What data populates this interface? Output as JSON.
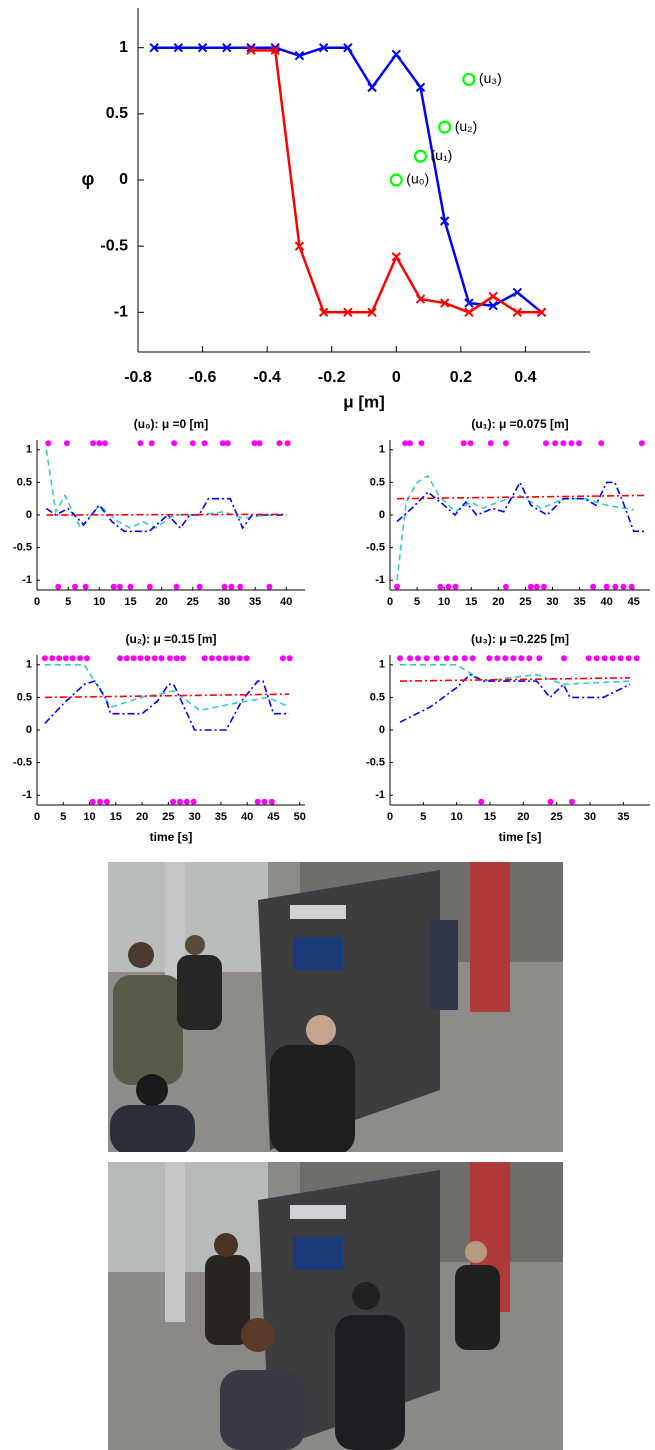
{
  "chart_data": [
    {
      "type": "line",
      "xlabel": "μ [m]",
      "ylabel": "φ",
      "x": [
        -0.75,
        -0.675,
        -0.6,
        -0.525,
        -0.45,
        -0.375,
        -0.3,
        -0.225,
        -0.15,
        -0.075,
        0,
        0.075,
        0.15,
        0.225,
        0.3,
        0.375,
        0.45
      ],
      "series": [
        {
          "color": "#0000ff",
          "marker": "x",
          "values": [
            1,
            1,
            1,
            1,
            1,
            1,
            0.94,
            1,
            1,
            0.7,
            0.95,
            0.7,
            -0.31,
            -0.93,
            -0.95,
            -0.85,
            -1
          ]
        },
        {
          "color": "#ff0000",
          "marker": "x",
          "values": [
            null,
            null,
            null,
            null,
            0.98,
            0.98,
            -0.5,
            -1,
            -1,
            -1,
            -0.58,
            -0.9,
            -0.93,
            -1,
            -0.88,
            -1,
            -1
          ]
        }
      ],
      "points": {
        "color": "#00ff00",
        "x": [
          0,
          0.075,
          0.15,
          0.225
        ],
        "values": [
          0,
          0.18,
          0.4,
          0.76
        ],
        "labels": [
          "(u₀)",
          "(u₁)",
          "(u₂)",
          "(u₃)"
        ]
      },
      "xlim": [
        -0.8,
        0.6
      ],
      "ylim": [
        -1.3,
        1.3
      ],
      "xticks": [
        -0.8,
        -0.6,
        -0.4,
        -0.2,
        0,
        0.2,
        0.4
      ],
      "yticks": [
        -1,
        -0.5,
        0,
        0.5,
        1
      ]
    },
    {
      "type": "line",
      "title": "(u₀): μ =0 [m]",
      "xlim": [
        0,
        43
      ],
      "ylim": [
        -1.15,
        1.15
      ],
      "xticks": [
        0,
        5,
        10,
        15,
        20,
        25,
        30,
        35,
        40
      ],
      "yticks": [
        -1,
        -0.5,
        0,
        0.5,
        1
      ],
      "series": [
        {
          "color": "#ff00ff",
          "style": "dots",
          "x": [
            1.8,
            4.8,
            9,
            10,
            10.9,
            16.6,
            18.4,
            22,
            25,
            26.9,
            29.8,
            30.6,
            34.9,
            35.7,
            38.9,
            40.2
          ],
          "values": [
            1.1,
            1.1,
            1.1,
            1.1,
            1.1,
            1.1,
            1.1,
            1.1,
            1.1,
            1.1,
            1.1,
            1.1,
            1.1,
            1.1,
            1.1,
            1.1
          ]
        },
        {
          "color": "#ff00ff",
          "style": "dots",
          "x": [
            3.4,
            6.1,
            7.8,
            12.3,
            13.3,
            15,
            18.1,
            22.4,
            26.1,
            30.1,
            31.2,
            32.6,
            37.3
          ],
          "values": [
            -1.1,
            -1.1,
            -1.1,
            -1.1,
            -1.1,
            -1.1,
            -1.1,
            -1.1,
            -1.1,
            -1.1,
            -1.1,
            -1.1,
            -1.1
          ]
        },
        {
          "color": "#33cccc",
          "style": "dashed",
          "x": [
            1.5,
            3,
            4.5,
            7,
            10,
            13,
            15,
            17,
            19,
            22,
            26,
            30,
            33,
            37,
            40
          ],
          "values": [
            1,
            0.05,
            0.3,
            -0.2,
            0.15,
            -0.1,
            -0.2,
            -0.1,
            -0.2,
            0,
            0,
            0.05,
            -0.05,
            0,
            0
          ]
        },
        {
          "color": "#0000ff",
          "style": "dash-dot",
          "x": [
            1.5,
            3,
            5,
            7.5,
            10,
            12,
            14,
            18,
            21,
            23,
            24.5,
            26,
            27.5,
            31,
            33,
            34.5,
            40
          ],
          "values": [
            0.1,
            0,
            0.1,
            -0.15,
            0.15,
            -0.1,
            -0.25,
            -0.25,
            0,
            -0.2,
            0,
            0,
            0.25,
            0.25,
            -0.2,
            0,
            0
          ]
        },
        {
          "color": "#ff0000",
          "style": "dash-dot",
          "x": [
            1.5,
            40
          ],
          "values": [
            0,
            0.01
          ]
        }
      ]
    },
    {
      "type": "line",
      "title": "(u₁): μ =0.075 [m]",
      "xlim": [
        0,
        48
      ],
      "ylim": [
        -1.15,
        1.15
      ],
      "xticks": [
        0,
        5,
        10,
        15,
        20,
        25,
        30,
        35,
        40,
        45
      ],
      "yticks": [
        -1,
        -0.5,
        0,
        0.5,
        1
      ],
      "series": [
        {
          "color": "#ff00ff",
          "style": "dots",
          "x": [
            2.8,
            3.7,
            5.8,
            13.6,
            14.9,
            18.6,
            21.4,
            28.8,
            30.5,
            32,
            33.5,
            34.9,
            39,
            46.5
          ],
          "values": [
            1.1,
            1.1,
            1.1,
            1.1,
            1.1,
            1.1,
            1.1,
            1.1,
            1.1,
            1.1,
            1.1,
            1.1,
            1.1,
            1.1
          ]
        },
        {
          "color": "#ff00ff",
          "style": "dots",
          "x": [
            1.3,
            9.3,
            10.8,
            12.1,
            21.4,
            26,
            27.1,
            28.4,
            37.5,
            40,
            41.6,
            43.1,
            44.6
          ],
          "values": [
            -1.1,
            -1.1,
            -1.1,
            -1.1,
            -1.1,
            -1.1,
            -1.1,
            -1.1,
            -1.1,
            -1.1,
            -1.1,
            -1.1,
            -1.1
          ]
        },
        {
          "color": "#33cccc",
          "style": "dashed",
          "x": [
            1.3,
            2,
            3,
            5,
            7,
            9,
            12,
            15,
            17,
            20,
            24,
            28,
            32,
            36,
            40,
            45
          ],
          "values": [
            -1,
            -0.5,
            0.2,
            0.5,
            0.6,
            0.3,
            0.05,
            0.2,
            0.1,
            0.2,
            0.3,
            0.1,
            0.25,
            0.25,
            0.15,
            0.08
          ]
        },
        {
          "color": "#0000ff",
          "style": "dash-dot",
          "x": [
            1.3,
            4,
            7,
            10,
            12,
            14,
            16,
            19,
            21,
            24,
            26,
            29,
            32,
            36,
            38,
            40,
            41.5,
            43,
            45,
            47
          ],
          "values": [
            -0.1,
            0.1,
            0.35,
            0.15,
            0,
            0.2,
            0,
            0.1,
            0.05,
            0.5,
            0.15,
            0,
            0.25,
            0.25,
            0.15,
            0.5,
            0.5,
            0.2,
            -0.25,
            -0.25
          ]
        },
        {
          "color": "#ff0000",
          "style": "dash-dot",
          "x": [
            1.3,
            47
          ],
          "values": [
            0.25,
            0.3
          ]
        }
      ]
    },
    {
      "type": "line",
      "title": "(u₂): μ =0.15 [m]",
      "xlabel": "time [s]",
      "xlim": [
        0,
        51
      ],
      "ylim": [
        -1.15,
        1.15
      ],
      "xticks": [
        0,
        5,
        10,
        15,
        20,
        25,
        30,
        35,
        40,
        45,
        50
      ],
      "yticks": [
        -1,
        -0.5,
        0,
        0.5,
        1
      ],
      "series": [
        {
          "color": "#ff00ff",
          "style": "dots",
          "x": [
            1.5,
            2.9,
            4.2,
            5.5,
            6.8,
            8.2,
            9.5,
            15.8,
            17.1,
            18.4,
            19.7,
            21,
            22.4,
            23.7,
            25.3,
            26.6,
            27.8,
            31.9,
            33.3,
            34.6,
            35.9,
            37.2,
            38.6,
            39.9,
            46.8,
            48.1
          ],
          "values": [
            1.1,
            1.1,
            1.1,
            1.1,
            1.1,
            1.1,
            1.1,
            1.1,
            1.1,
            1.1,
            1.1,
            1.1,
            1.1,
            1.1,
            1.1,
            1.1,
            1.1,
            1.1,
            1.1,
            1.1,
            1.1,
            1.1,
            1.1,
            1.1,
            1.1,
            1.1
          ]
        },
        {
          "color": "#ff00ff",
          "style": "dots",
          "x": [
            10.6,
            12,
            13.3,
            25.9,
            27.2,
            28.5,
            29.8,
            42,
            43.3,
            44.7
          ],
          "values": [
            -1.1,
            -1.1,
            -1.1,
            -1.1,
            -1.1,
            -1.1,
            -1.1,
            -1.1,
            -1.1,
            -1.1
          ]
        },
        {
          "color": "#33cccc",
          "style": "dashed",
          "x": [
            1.5,
            9,
            14,
            20,
            26,
            31,
            37,
            44,
            48
          ],
          "values": [
            1,
            1,
            0.35,
            0.5,
            0.6,
            0.3,
            0.4,
            0.5,
            0.35
          ]
        },
        {
          "color": "#0000ff",
          "style": "dash-dot",
          "x": [
            1.5,
            5,
            9,
            11,
            13,
            14,
            20,
            23,
            25,
            26,
            28,
            30,
            36,
            39,
            42,
            43,
            45,
            48
          ],
          "values": [
            0.1,
            0.4,
            0.7,
            0.75,
            0.5,
            0.25,
            0.25,
            0.45,
            0.7,
            0.7,
            0.35,
            0,
            0,
            0.45,
            0.75,
            0.75,
            0.25,
            0.25
          ]
        },
        {
          "color": "#ff0000",
          "style": "dash-dot",
          "x": [
            1.5,
            48
          ],
          "values": [
            0.5,
            0.55
          ]
        }
      ]
    },
    {
      "type": "line",
      "title": "(u₃): μ =0.225 [m]",
      "xlabel": "time [s]",
      "xlim": [
        0,
        39
      ],
      "ylim": [
        -1.15,
        1.15
      ],
      "xticks": [
        0,
        5,
        10,
        15,
        20,
        25,
        30,
        35
      ],
      "yticks": [
        -1,
        -0.5,
        0,
        0.5,
        1
      ],
      "series": [
        {
          "color": "#ff00ff",
          "style": "dots",
          "x": [
            1.5,
            3,
            4.2,
            5.5,
            7,
            8.5,
            9.8,
            11.2,
            12.4,
            14.9,
            16.1,
            17.3,
            18.5,
            19.7,
            20.9,
            22.4,
            26.1,
            29.8,
            31,
            32.2,
            33.4,
            34.6,
            35.8,
            37
          ],
          "values": [
            1.1,
            1.1,
            1.1,
            1.1,
            1.1,
            1.1,
            1.1,
            1.1,
            1.1,
            1.1,
            1.1,
            1.1,
            1.1,
            1.1,
            1.1,
            1.1,
            1.1,
            1.1,
            1.1,
            1.1,
            1.1,
            1.1,
            1.1,
            1.1
          ]
        },
        {
          "color": "#ff00ff",
          "style": "dots",
          "x": [
            13.7,
            24.1,
            27.3
          ],
          "values": [
            -1.1,
            -1.1,
            -1.1
          ]
        },
        {
          "color": "#33cccc",
          "style": "dashed",
          "x": [
            1.5,
            10,
            14,
            22,
            26,
            36
          ],
          "values": [
            1,
            1,
            0.75,
            0.85,
            0.7,
            0.75
          ]
        },
        {
          "color": "#0000ff",
          "style": "dash-dot",
          "x": [
            1.5,
            6,
            10,
            12,
            14,
            22,
            24,
            26,
            27,
            32,
            36
          ],
          "values": [
            0.12,
            0.35,
            0.65,
            0.85,
            0.75,
            0.75,
            0.5,
            0.7,
            0.5,
            0.5,
            0.7
          ]
        },
        {
          "color": "#ff0000",
          "style": "dash-dot",
          "x": [
            1.5,
            36
          ],
          "values": [
            0.75,
            0.8
          ]
        }
      ]
    }
  ]
}
